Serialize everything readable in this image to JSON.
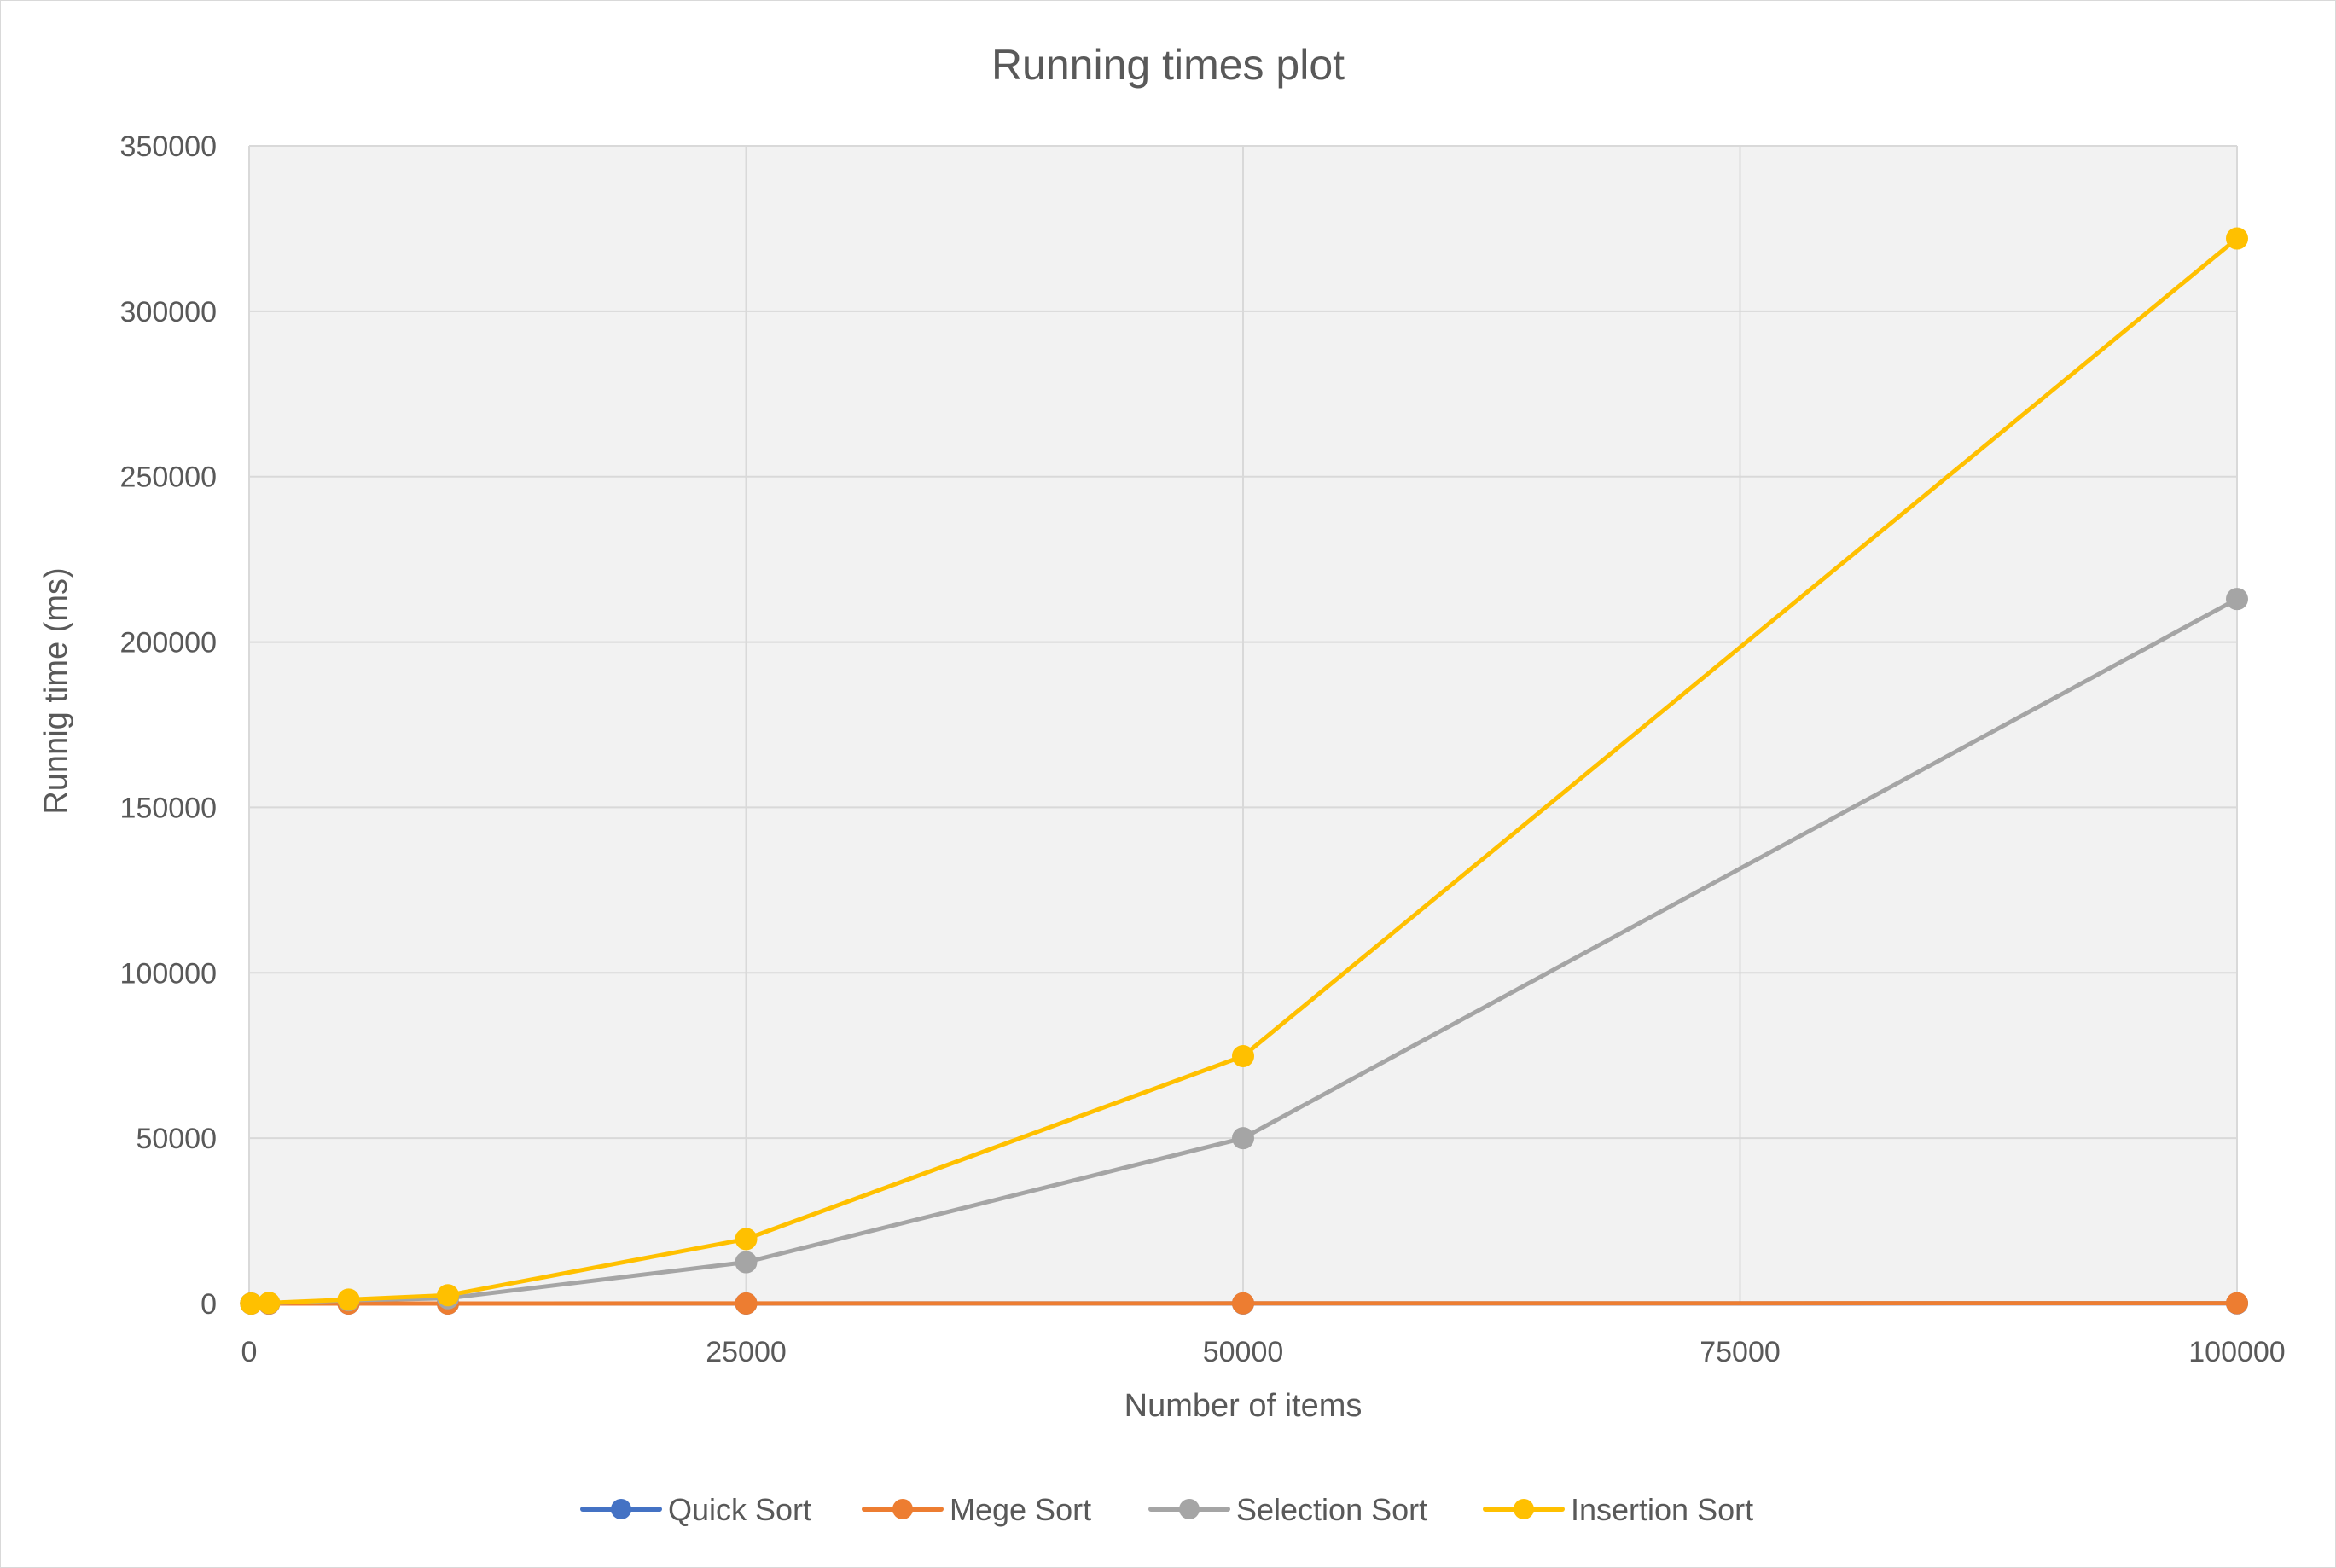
{
  "chart_data": {
    "type": "line",
    "title": "Running times plot",
    "xlabel": "Number of items",
    "ylabel": "Runnig time (ms)",
    "xlim": [
      0,
      100000
    ],
    "ylim": [
      0,
      350000
    ],
    "x_ticks": [
      "0",
      "25000",
      "50000",
      "75000",
      "100000"
    ],
    "y_ticks": [
      "0",
      "50000",
      "100000",
      "150000",
      "200000",
      "250000",
      "300000",
      "350000"
    ],
    "grid": true,
    "legend_position": "bottom",
    "x": [
      100,
      1000,
      5000,
      10000,
      25000,
      50000,
      100000
    ],
    "series": [
      {
        "name": "Quick Sort",
        "color": "#4472C4",
        "values": [
          0,
          1,
          3,
          6,
          14,
          30,
          60
        ]
      },
      {
        "name": "Mege Sort",
        "color": "#ED7D31",
        "values": [
          0,
          1,
          5,
          10,
          25,
          50,
          110
        ]
      },
      {
        "name": "Selection Sort",
        "color": "#A5A5A5",
        "values": [
          2,
          130,
          1000,
          1600,
          12500,
          50000,
          213000
        ]
      },
      {
        "name": "Insertion Sort",
        "color": "#FFC000",
        "values": [
          3,
          190,
          1200,
          2500,
          19500,
          74800,
          322000
        ]
      }
    ]
  }
}
